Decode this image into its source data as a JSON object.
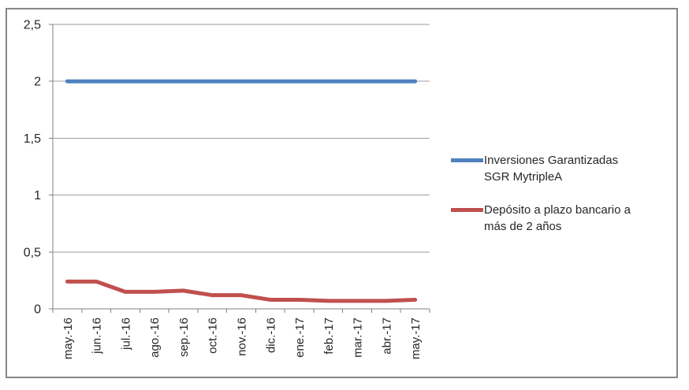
{
  "chart_data": {
    "type": "line",
    "title": "",
    "xlabel": "",
    "ylabel": "",
    "categories": [
      "may.-16",
      "jun.-16",
      "jul.-16",
      "ago.-16",
      "sep.-16",
      "oct.-16",
      "nov.-16",
      "dic.-16",
      "ene.-17",
      "feb.-17",
      "mar.-17",
      "abr.-17",
      "may.-17"
    ],
    "series": [
      {
        "name": "Inversiones Garantizadas SGR MytripleA",
        "color": "#4F81BD",
        "values": [
          2,
          2,
          2,
          2,
          2,
          2,
          2,
          2,
          2,
          2,
          2,
          2,
          2
        ]
      },
      {
        "name": "Depósito a plazo bancario a más de 2 años",
        "color": "#C0504D",
        "values": [
          0.24,
          0.24,
          0.15,
          0.15,
          0.16,
          0.12,
          0.12,
          0.08,
          0.08,
          0.07,
          0.07,
          0.07,
          0.08
        ]
      }
    ],
    "ylim": [
      0,
      2.5
    ],
    "yticks": [
      {
        "value": 0,
        "label": "0"
      },
      {
        "value": 0.5,
        "label": "0,5"
      },
      {
        "value": 1,
        "label": "1"
      },
      {
        "value": 1.5,
        "label": "1,5"
      },
      {
        "value": 2,
        "label": "2"
      },
      {
        "value": 2.5,
        "label": "2,5"
      }
    ],
    "grid": true,
    "legend_position": "right"
  },
  "colors": {
    "axis": "#808080",
    "gridline": "#9e9e9e",
    "text": "#262626",
    "frame_border": "#878787",
    "background": "#ffffff"
  }
}
